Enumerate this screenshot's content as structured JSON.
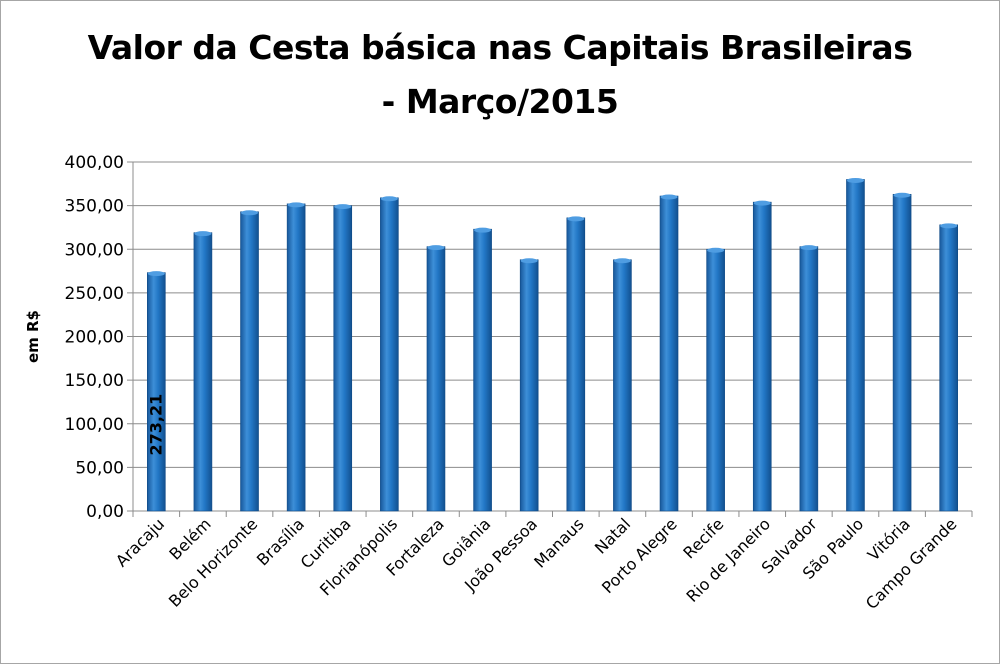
{
  "chart_data": {
    "type": "bar",
    "title_lines": [
      "Valor da Cesta básica nas Capitais Brasileiras",
      "- Março/2015"
    ],
    "ylabel": "em R$",
    "xlabel": "",
    "ylim": [
      0,
      400
    ],
    "ytick_step": 50,
    "ytick_labels": [
      "0,00",
      "50,00",
      "100,00",
      "150,00",
      "200,00",
      "250,00",
      "300,00",
      "350,00",
      "400,00"
    ],
    "grid": true,
    "legend": "none",
    "bar_color": "#1f6fba",
    "categories": [
      "Aracaju",
      "Belém",
      "Belo Horizonte",
      "Brasília",
      "Curitiba",
      "Florianópolis",
      "Fortaleza",
      "Goiânia",
      "João Pessoa",
      "Manaus",
      "Natal",
      "Porto Alegre",
      "Recife",
      "Rio de Janeiro",
      "Salvador",
      "São Paulo",
      "Vitória",
      "Campo Grande"
    ],
    "values": [
      273.21,
      319,
      343,
      352,
      350,
      359,
      303,
      323,
      288,
      336,
      288,
      361,
      300,
      354,
      303,
      380,
      363,
      328
    ],
    "data_labels": [
      {
        "index": 0,
        "text": "273,21"
      }
    ]
  }
}
